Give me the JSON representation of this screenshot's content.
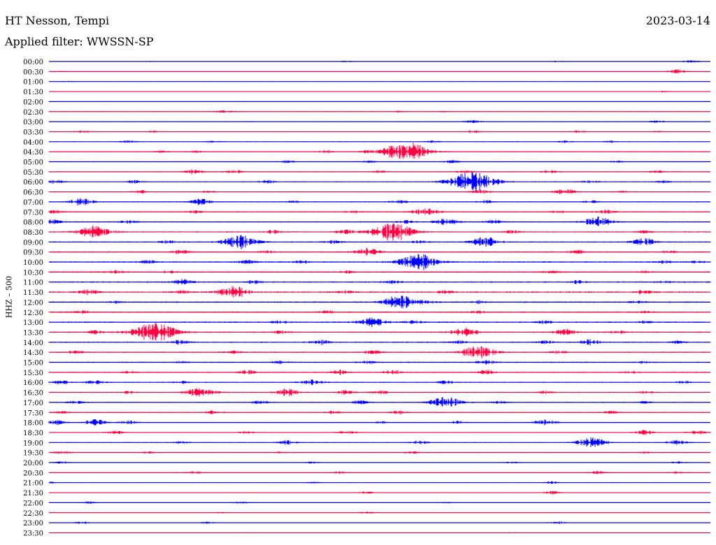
{
  "header": {
    "station": "HT Nesson, Tempi",
    "date": "2023-03-14",
    "filter": "Applied filter: WWSSN-SP"
  },
  "channel_label": "HHZ – 500",
  "colors": {
    "odd_rows": "#0000ff",
    "even_rows": "#ff0040",
    "axis_text": "#000000"
  },
  "chart_data": {
    "type": "line",
    "title": "HT Nesson, Tempi",
    "ylabel": "HHZ – 500",
    "xlabel": "",
    "grid": false,
    "rows": [
      {
        "label": "00:00",
        "events": [
          [
            0.45,
            1
          ],
          [
            0.97,
            2
          ],
          [
            0.77,
            1
          ],
          [
            0.15,
            0.7
          ]
        ]
      },
      {
        "label": "00:30",
        "events": [
          [
            0.95,
            3
          ],
          [
            0.02,
            0.5
          ]
        ]
      },
      {
        "label": "01:00",
        "events": [
          [
            0.03,
            0.8
          ]
        ]
      },
      {
        "label": "01:30",
        "events": [
          [
            0.93,
            0.8
          ]
        ]
      },
      {
        "label": "02:00",
        "events": []
      },
      {
        "label": "02:30",
        "events": [
          [
            0.26,
            1.5
          ],
          [
            0.53,
            1.2
          ],
          [
            0.6,
            1
          ],
          [
            0.28,
            1
          ]
        ]
      },
      {
        "label": "03:00",
        "events": [
          [
            0.64,
            2
          ],
          [
            0.92,
            1.5
          ],
          [
            0.3,
            0.6
          ]
        ]
      },
      {
        "label": "03:30",
        "events": [
          [
            0.05,
            1.5
          ],
          [
            0.16,
            1
          ],
          [
            0.64,
            2
          ],
          [
            0.8,
            1.5
          ],
          [
            0.92,
            1
          ]
        ]
      },
      {
        "label": "04:00",
        "events": [
          [
            0.12,
            2
          ],
          [
            0.25,
            1.3
          ],
          [
            0.58,
            1.5
          ],
          [
            0.78,
            1.5
          ],
          [
            0.85,
            1.5
          ]
        ]
      },
      {
        "label": "04:30",
        "events": [
          [
            0.54,
            14
          ],
          [
            0.17,
            2
          ],
          [
            0.42,
            2
          ],
          [
            0.22,
            1.5
          ],
          [
            0.48,
            1.2
          ]
        ]
      },
      {
        "label": "05:00",
        "events": [
          [
            0.36,
            1.5
          ],
          [
            0.48,
            1.5
          ],
          [
            0.61,
            1.8
          ],
          [
            0.86,
            1.5
          ]
        ]
      },
      {
        "label": "05:30",
        "events": [
          [
            0.22,
            3
          ],
          [
            0.28,
            2.5
          ],
          [
            0.63,
            2
          ],
          [
            0.76,
            2
          ],
          [
            0.92,
            1.5
          ],
          [
            0.5,
            1.5
          ]
        ]
      },
      {
        "label": "06:00",
        "events": [
          [
            0.64,
            14
          ],
          [
            0.01,
            2
          ],
          [
            0.13,
            2
          ],
          [
            0.33,
            2
          ],
          [
            0.82,
            2
          ],
          [
            0.93,
            1.5
          ]
        ]
      },
      {
        "label": "06:30",
        "events": [
          [
            0.78,
            4
          ],
          [
            0.14,
            2
          ],
          [
            0.24,
            1.5
          ],
          [
            0.65,
            3
          ],
          [
            0.87,
            1.5
          ]
        ]
      },
      {
        "label": "07:00",
        "events": [
          [
            0.05,
            5
          ],
          [
            0.23,
            4
          ],
          [
            0.37,
            1.5
          ],
          [
            0.53,
            2.5
          ],
          [
            0.66,
            2
          ],
          [
            0.82,
            1.5
          ]
        ]
      },
      {
        "label": "07:30",
        "events": [
          [
            0.57,
            5
          ],
          [
            0.84,
            3
          ],
          [
            0.01,
            2
          ],
          [
            0.22,
            1.5
          ],
          [
            0.46,
            1.5
          ],
          [
            0.77,
            1.5
          ]
        ]
      },
      {
        "label": "08:00",
        "events": [
          [
            0.0,
            4
          ],
          [
            0.12,
            2
          ],
          [
            0.6,
            5
          ],
          [
            0.83,
            7
          ],
          [
            0.67,
            3
          ],
          [
            0.54,
            2
          ]
        ]
      },
      {
        "label": "08:30",
        "events": [
          [
            0.07,
            9
          ],
          [
            0.52,
            12
          ],
          [
            0.34,
            2.5
          ],
          [
            0.45,
            3
          ],
          [
            0.7,
            2
          ],
          [
            0.9,
            1.5
          ]
        ]
      },
      {
        "label": "09:00",
        "events": [
          [
            0.29,
            9
          ],
          [
            0.66,
            7
          ],
          [
            0.9,
            5
          ],
          [
            0.18,
            2
          ],
          [
            0.43,
            2
          ],
          [
            0.56,
            2
          ]
        ]
      },
      {
        "label": "09:30",
        "events": [
          [
            0.48,
            5
          ],
          [
            0.2,
            2.5
          ],
          [
            0.8,
            2.5
          ],
          [
            0.94,
            1.5
          ],
          [
            0.33,
            1.5
          ]
        ]
      },
      {
        "label": "10:00",
        "events": [
          [
            0.56,
            11
          ],
          [
            0.15,
            2.5
          ],
          [
            0.3,
            2.5
          ],
          [
            0.38,
            2
          ],
          [
            0.93,
            1.5
          ],
          [
            0.98,
            1.5
          ]
        ]
      },
      {
        "label": "10:30",
        "events": [
          [
            0.1,
            2
          ],
          [
            0.18,
            1.5
          ],
          [
            0.45,
            1.5
          ],
          [
            0.76,
            2
          ],
          [
            0.9,
            1.5
          ]
        ]
      },
      {
        "label": "11:00",
        "events": [
          [
            0.2,
            4
          ],
          [
            0.31,
            2
          ],
          [
            0.52,
            2
          ],
          [
            0.8,
            2
          ],
          [
            0.93,
            1.5
          ]
        ]
      },
      {
        "label": "11:30",
        "events": [
          [
            0.28,
            8
          ],
          [
            0.06,
            3
          ],
          [
            0.2,
            2
          ],
          [
            0.45,
            2
          ],
          [
            0.6,
            2
          ],
          [
            0.9,
            2.5
          ]
        ]
      },
      {
        "label": "12:00",
        "events": [
          [
            0.53,
            9
          ],
          [
            0.57,
            2
          ],
          [
            0.65,
            2
          ],
          [
            0.89,
            1.5
          ],
          [
            0.1,
            1.2
          ]
        ]
      },
      {
        "label": "12:30",
        "events": [
          [
            0.05,
            2
          ],
          [
            0.42,
            2
          ],
          [
            0.65,
            1.5
          ],
          [
            0.9,
            1.5
          ]
        ]
      },
      {
        "label": "13:00",
        "events": [
          [
            0.49,
            6
          ],
          [
            0.55,
            2
          ],
          [
            0.35,
            2
          ],
          [
            0.75,
            2
          ],
          [
            0.9,
            1.5
          ]
        ]
      },
      {
        "label": "13:30",
        "events": [
          [
            0.16,
            13
          ],
          [
            0.63,
            6
          ],
          [
            0.78,
            4
          ],
          [
            0.07,
            2
          ],
          [
            0.35,
            2
          ],
          [
            0.86,
            2
          ]
        ]
      },
      {
        "label": "14:00",
        "events": [
          [
            0.2,
            3
          ],
          [
            0.41,
            3
          ],
          [
            0.62,
            2
          ],
          [
            0.75,
            2
          ],
          [
            0.82,
            4
          ],
          [
            0.95,
            1.5
          ]
        ]
      },
      {
        "label": "14:30",
        "events": [
          [
            0.65,
            9
          ],
          [
            0.04,
            2
          ],
          [
            0.49,
            2.5
          ],
          [
            0.28,
            2
          ],
          [
            0.77,
            2
          ]
        ]
      },
      {
        "label": "15:00",
        "events": [
          [
            0.48,
            2
          ],
          [
            0.66,
            3
          ],
          [
            0.35,
            2
          ],
          [
            0.2,
            1.5
          ],
          [
            0.9,
            1.5
          ]
        ]
      },
      {
        "label": "15:30",
        "events": [
          [
            0.3,
            3
          ],
          [
            0.44,
            3
          ],
          [
            0.52,
            3
          ],
          [
            0.66,
            3
          ],
          [
            0.12,
            1.5
          ],
          [
            0.88,
            1.5
          ]
        ]
      },
      {
        "label": "16:00",
        "events": [
          [
            0.02,
            2.5
          ],
          [
            0.07,
            2.5
          ],
          [
            0.4,
            4
          ],
          [
            0.2,
            2
          ],
          [
            0.6,
            2
          ],
          [
            0.96,
            2
          ]
        ]
      },
      {
        "label": "16:30",
        "events": [
          [
            0.23,
            7
          ],
          [
            0.36,
            5
          ],
          [
            0.45,
            3
          ],
          [
            0.5,
            2.5
          ],
          [
            0.12,
            1.5
          ],
          [
            0.75,
            2
          ],
          [
            0.9,
            2
          ]
        ]
      },
      {
        "label": "17:00",
        "events": [
          [
            0.6,
            8
          ],
          [
            0.04,
            2
          ],
          [
            0.32,
            2.5
          ],
          [
            0.47,
            2.5
          ],
          [
            0.68,
            2
          ],
          [
            0.9,
            1.5
          ]
        ]
      },
      {
        "label": "17:30",
        "events": [
          [
            0.25,
            2.5
          ],
          [
            0.53,
            2.5
          ],
          [
            0.43,
            2
          ],
          [
            0.85,
            2
          ],
          [
            0.02,
            1.5
          ]
        ]
      },
      {
        "label": "18:00",
        "events": [
          [
            0.01,
            3
          ],
          [
            0.07,
            4
          ],
          [
            0.12,
            2.5
          ],
          [
            0.62,
            2
          ],
          [
            0.75,
            4
          ],
          [
            0.5,
            1.5
          ]
        ]
      },
      {
        "label": "18:30",
        "events": [
          [
            0.1,
            2
          ],
          [
            0.45,
            2.5
          ],
          [
            0.9,
            3
          ],
          [
            0.98,
            2.5
          ],
          [
            0.3,
            1.5
          ]
        ]
      },
      {
        "label": "19:00",
        "events": [
          [
            0.82,
            7
          ],
          [
            0.36,
            3
          ],
          [
            0.56,
            2.5
          ],
          [
            0.95,
            3.5
          ],
          [
            0.2,
            1.5
          ]
        ]
      },
      {
        "label": "19:30",
        "events": [
          [
            0.02,
            2
          ],
          [
            0.15,
            1.5
          ],
          [
            0.35,
            1.5
          ],
          [
            0.55,
            1.5
          ],
          [
            0.9,
            1.5
          ]
        ]
      },
      {
        "label": "20:00",
        "events": [
          [
            0.02,
            1.5
          ],
          [
            0.4,
            1.2
          ],
          [
            0.7,
            1.2
          ],
          [
            0.95,
            1.5
          ]
        ]
      },
      {
        "label": "20:30",
        "events": [
          [
            0.22,
            2
          ],
          [
            0.44,
            1.5
          ],
          [
            0.83,
            2
          ],
          [
            0.95,
            1.5
          ]
        ]
      },
      {
        "label": "21:00",
        "events": [
          [
            0.0,
            1.5
          ],
          [
            0.76,
            1.5
          ],
          [
            0.4,
            1
          ]
        ]
      },
      {
        "label": "21:30",
        "events": [
          [
            0.48,
            1.5
          ],
          [
            0.76,
            2
          ]
        ]
      },
      {
        "label": "22:00",
        "events": [
          [
            0.06,
            1.5
          ],
          [
            0.29,
            2
          ],
          [
            0.6,
            0.8
          ]
        ]
      },
      {
        "label": "22:30",
        "events": [
          [
            0.26,
            1.2
          ],
          [
            0.48,
            1.5
          ]
        ]
      },
      {
        "label": "23:00",
        "events": [
          [
            0.05,
            1.5
          ],
          [
            0.24,
            1.5
          ],
          [
            0.77,
            2
          ]
        ]
      },
      {
        "label": "23:30",
        "events": [
          [
            0.3,
            0.7
          ],
          [
            0.7,
            0.7
          ]
        ]
      }
    ]
  }
}
